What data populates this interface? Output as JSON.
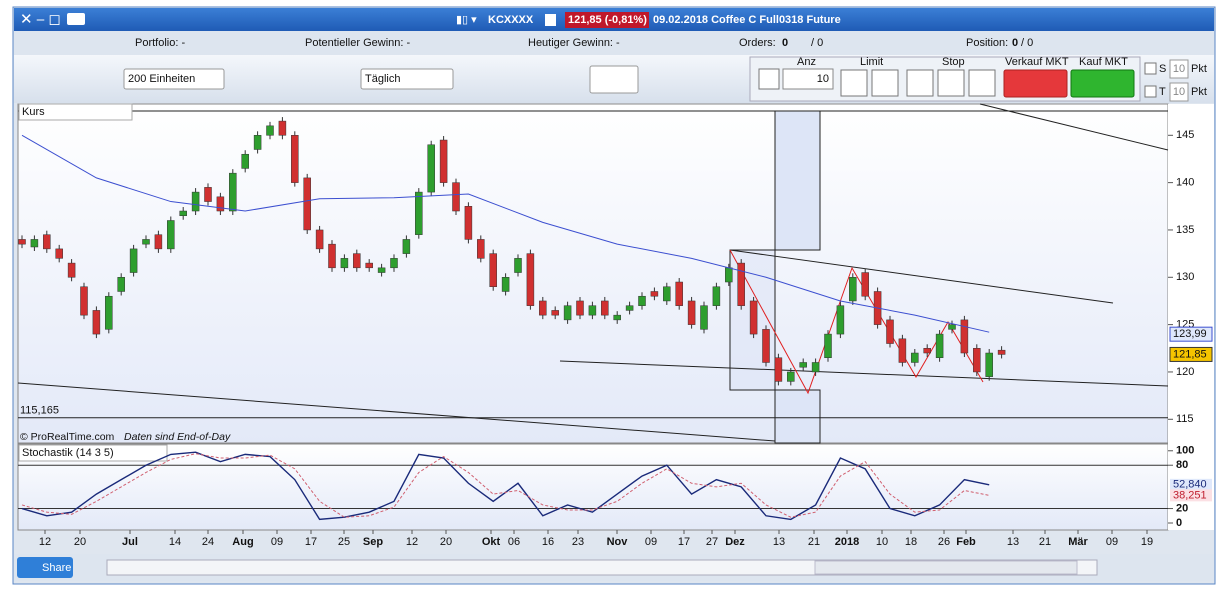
{
  "window": {
    "symbol": "KCXXXX",
    "price_change": "121,85 (-0,81%)",
    "description": "09.02.2018 Coffee C Full0318 Future"
  },
  "info_bar": {
    "portfolio": "Portfolio: -",
    "potential_gain": "Potentieller Gewinn: -",
    "today_gain": "Heutiger Gewinn: -",
    "orders_label": "Orders:",
    "orders_count": "0",
    "orders_total": "/ 0",
    "position_label": "Position:",
    "position_count": "0",
    "position_total": "/ 0"
  },
  "toolbar": {
    "units": "200 Einheiten",
    "period": "Täglich",
    "qty_label": "Anz",
    "qty": "10",
    "limit": "Limit",
    "stop": "Stop",
    "sell": "Verkauf MKT",
    "buy": "Kauf MKT",
    "s_label": "S",
    "s_value": "10",
    "s_unit": "Pkt",
    "t_label": "T",
    "t_value": "10",
    "t_unit": "Pkt"
  },
  "chart_data": [
    {
      "type": "candlestick",
      "title": "Kurs",
      "source": "© ProRealTime.com",
      "note": "Daten sind End-of-Day",
      "open": [
        134,
        133.2,
        134.5,
        133,
        131.5,
        129,
        126.5,
        124.5,
        128.5,
        130.5,
        133.5,
        134.5,
        133,
        136.5,
        137,
        139.5,
        138.5,
        137,
        141.5,
        143.5,
        145,
        146.5,
        145,
        140.5,
        135,
        133.5,
        131,
        132.5,
        131.5,
        130.5,
        131,
        132.5,
        134.5,
        139,
        144.5,
        140,
        137.5,
        134,
        132.5,
        128.5,
        130.5,
        132.5,
        127.5,
        126.5,
        125.5,
        127.5,
        126,
        127.5,
        125.5,
        126.5,
        127,
        128.5,
        127.5,
        129.5,
        127.5,
        124.5,
        127,
        129.5,
        131.5,
        127.5,
        124.5,
        121.5,
        119,
        120.5,
        120,
        121.5,
        124,
        127.5,
        130.5,
        128.5,
        125.5,
        123.5,
        121,
        122.5,
        121.5,
        124.5,
        125.5,
        122.5,
        119.5,
        122.3
      ],
      "close": [
        133.5,
        134,
        133,
        132,
        130,
        126,
        124,
        128,
        130,
        133,
        134,
        133,
        136,
        137,
        139,
        138,
        137,
        141,
        143,
        145,
        146,
        145,
        140,
        135,
        133,
        131,
        132,
        131,
        131,
        131,
        132,
        134,
        139,
        144,
        140,
        137,
        134,
        132,
        129,
        130,
        132,
        127,
        126,
        126,
        127,
        126,
        127,
        126,
        126,
        127,
        128,
        128,
        129,
        127,
        125,
        127,
        129,
        131,
        127,
        124,
        121,
        119,
        120,
        121,
        121,
        124,
        127,
        130,
        128,
        125,
        123,
        121,
        122,
        122,
        124,
        125,
        122,
        120,
        122,
        121.85
      ],
      "up_color": "#2e9e2e",
      "down_color": "#d03030",
      "ma": {
        "color": "#3c4fd0",
        "values": [
          145,
          140.5,
          138,
          137,
          138.3,
          138.4,
          138.8,
          135.8,
          133.5,
          132,
          130,
          127.5,
          126,
          124.2
        ]
      },
      "level_label": {
        "value": 115.165,
        "label": "115,165"
      },
      "last_labels": [
        {
          "value": 123.99,
          "label": "123,99"
        },
        {
          "value": 121.85,
          "label": "121,85"
        }
      ],
      "ylim": [
        112.6,
        148.2
      ],
      "yticks": [
        115,
        120,
        125,
        130,
        135,
        140,
        145
      ],
      "grid": false
    },
    {
      "type": "stochastic",
      "title": "Stochastik (14 3 5)",
      "series": [
        {
          "color": "#1a2a7a",
          "values": [
            20,
            10,
            15,
            40,
            60,
            80,
            95,
            98,
            85,
            95,
            92,
            60,
            5,
            8,
            15,
            30,
            95,
            90,
            55,
            30,
            55,
            10,
            25,
            15,
            40,
            65,
            80,
            40,
            60,
            50,
            10,
            5,
            25,
            90,
            75,
            20,
            10,
            25,
            60,
            52.84
          ]
        },
        {
          "color": "#d06070",
          "values": [
            25,
            15,
            12,
            30,
            50,
            70,
            88,
            96,
            90,
            90,
            94,
            75,
            30,
            8,
            10,
            22,
            70,
            92,
            70,
            40,
            45,
            25,
            18,
            18,
            30,
            55,
            75,
            55,
            50,
            55,
            25,
            8,
            15,
            65,
            85,
            40,
            15,
            18,
            45,
            38.251
          ]
        }
      ],
      "last_labels": [
        {
          "value": 52.84,
          "label": "52,840"
        },
        {
          "value": 38.251,
          "label": "38,251"
        }
      ],
      "levels": [
        20,
        80
      ],
      "ylim": [
        -9.7,
        108
      ],
      "yticks": [
        0,
        20,
        80,
        100
      ]
    }
  ],
  "time_axis": {
    "labels": [
      "12",
      "20",
      "Jul",
      "14",
      "24",
      "Aug",
      "09",
      "17",
      "25",
      "Sep",
      "12",
      "20",
      "Okt",
      "06",
      "16",
      "23",
      "Nov",
      "09",
      "17",
      "27",
      "Dez",
      "13",
      "21",
      "2018",
      "10",
      "18",
      "26",
      "Feb",
      "13",
      "21",
      "Mär",
      "09",
      "19"
    ]
  },
  "bottom_bar": {
    "share": "Share"
  }
}
